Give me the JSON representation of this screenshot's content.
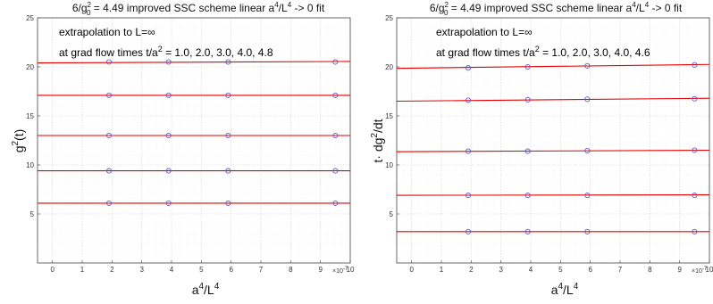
{
  "chart_data": [
    {
      "type": "scatter",
      "title": "6/g_0^2 = 4.49   improved SSC scheme  linear a^4/L^4 -> 0 fit",
      "title_parts": {
        "lead": "6/g",
        "sub": "0",
        "sup": "2",
        "tail_a": " = 4.49   improved SSC scheme  linear a",
        "sup2": "4",
        "tail_b": "/L",
        "sup3": "4",
        "tail_c": " -> 0 fit"
      },
      "annotation_line1": "extrapolation to L=∞",
      "annotation_line2": {
        "lead": "at grad flow times t/a",
        "sup": "2",
        "tail": " = 1.0, 2.0, 3.0, 4.0, 4.8"
      },
      "xlabel": {
        "base": "a",
        "sup": "4",
        "mid": "/L",
        "sup2": "4"
      },
      "ylabel": {
        "base": "g",
        "sup": "2",
        "tail": "(t)"
      },
      "x_scale_note": "×10",
      "x_scale_exp": "-7",
      "xlim": [
        -0.5,
        10
      ],
      "ylim": [
        0,
        25
      ],
      "xticks": [
        0,
        1,
        2,
        3,
        4,
        5,
        6,
        7,
        8,
        9,
        10
      ],
      "yticks": [
        5,
        10,
        15,
        20,
        25
      ],
      "grid": true,
      "x": [
        1.9,
        3.9,
        5.9,
        9.5
      ],
      "series": [
        {
          "values": [
            6.1,
            6.1,
            6.1,
            6.1
          ],
          "fit": [
            6.1,
            6.1
          ]
        },
        {
          "values": [
            9.4,
            9.4,
            9.4,
            9.4
          ],
          "fit": [
            9.4,
            9.4
          ]
        },
        {
          "values": [
            13.0,
            13.0,
            13.0,
            13.0
          ],
          "fit": [
            13.0,
            13.0
          ]
        },
        {
          "values": [
            17.1,
            17.1,
            17.1,
            17.1
          ],
          "fit": [
            17.1,
            17.1
          ]
        },
        {
          "values": [
            20.5,
            20.5,
            20.5,
            20.5
          ],
          "fit": [
            20.4,
            20.55
          ]
        }
      ],
      "fit_x": [
        -0.5,
        10
      ]
    },
    {
      "type": "scatter",
      "title": "6/g_0^2 = 4.49   improved SSC scheme  linear a^4/L^4 -> 0 fit",
      "title_parts": {
        "lead": "6/g",
        "sub": "0",
        "sup": "2",
        "tail_a": " = 4.49   improved SSC scheme  linear a",
        "sup2": "4",
        "tail_b": "/L",
        "sup3": "4",
        "tail_c": " -> 0 fit"
      },
      "annotation_line1": "extrapolation to L=∞",
      "annotation_line2": {
        "lead": "at grad flow times t/a",
        "sup": "2",
        "tail": " = 1.0, 2.0, 3.0, 4.0, 4.6"
      },
      "xlabel": {
        "base": "a",
        "sup": "4",
        "mid": "/L",
        "sup2": "4"
      },
      "ylabel": {
        "base": "t· dg",
        "sup": "2",
        "tail": "/dt"
      },
      "x_scale_note": "×10",
      "x_scale_exp": "-7",
      "xlim": [
        -0.5,
        10
      ],
      "ylim": [
        0,
        25
      ],
      "xticks": [
        0,
        1,
        2,
        3,
        4,
        5,
        6,
        7,
        8,
        9,
        10
      ],
      "yticks": [
        5,
        10,
        15,
        20,
        25
      ],
      "grid": true,
      "x": [
        1.9,
        3.9,
        5.9,
        9.5
      ],
      "series": [
        {
          "values": [
            3.2,
            3.2,
            3.2,
            3.2
          ],
          "fit": [
            3.2,
            3.2
          ]
        },
        {
          "values": [
            6.9,
            6.9,
            6.9,
            6.9
          ],
          "fit": [
            6.9,
            6.95
          ]
        },
        {
          "values": [
            11.4,
            11.4,
            11.45,
            11.5
          ],
          "fit": [
            11.35,
            11.5
          ]
        },
        {
          "values": [
            16.6,
            16.65,
            16.7,
            16.75
          ],
          "fit": [
            16.5,
            16.8
          ]
        },
        {
          "values": [
            19.9,
            20.0,
            20.1,
            20.2
          ],
          "fit": [
            19.85,
            20.25
          ]
        }
      ],
      "fit_x": [
        -0.5,
        10
      ]
    }
  ],
  "colors": {
    "marker": "#5b5bd6",
    "fit": "#e60000",
    "grid": "#d4d4d4",
    "minor_grid": "#ececec",
    "axis": "#444444"
  }
}
